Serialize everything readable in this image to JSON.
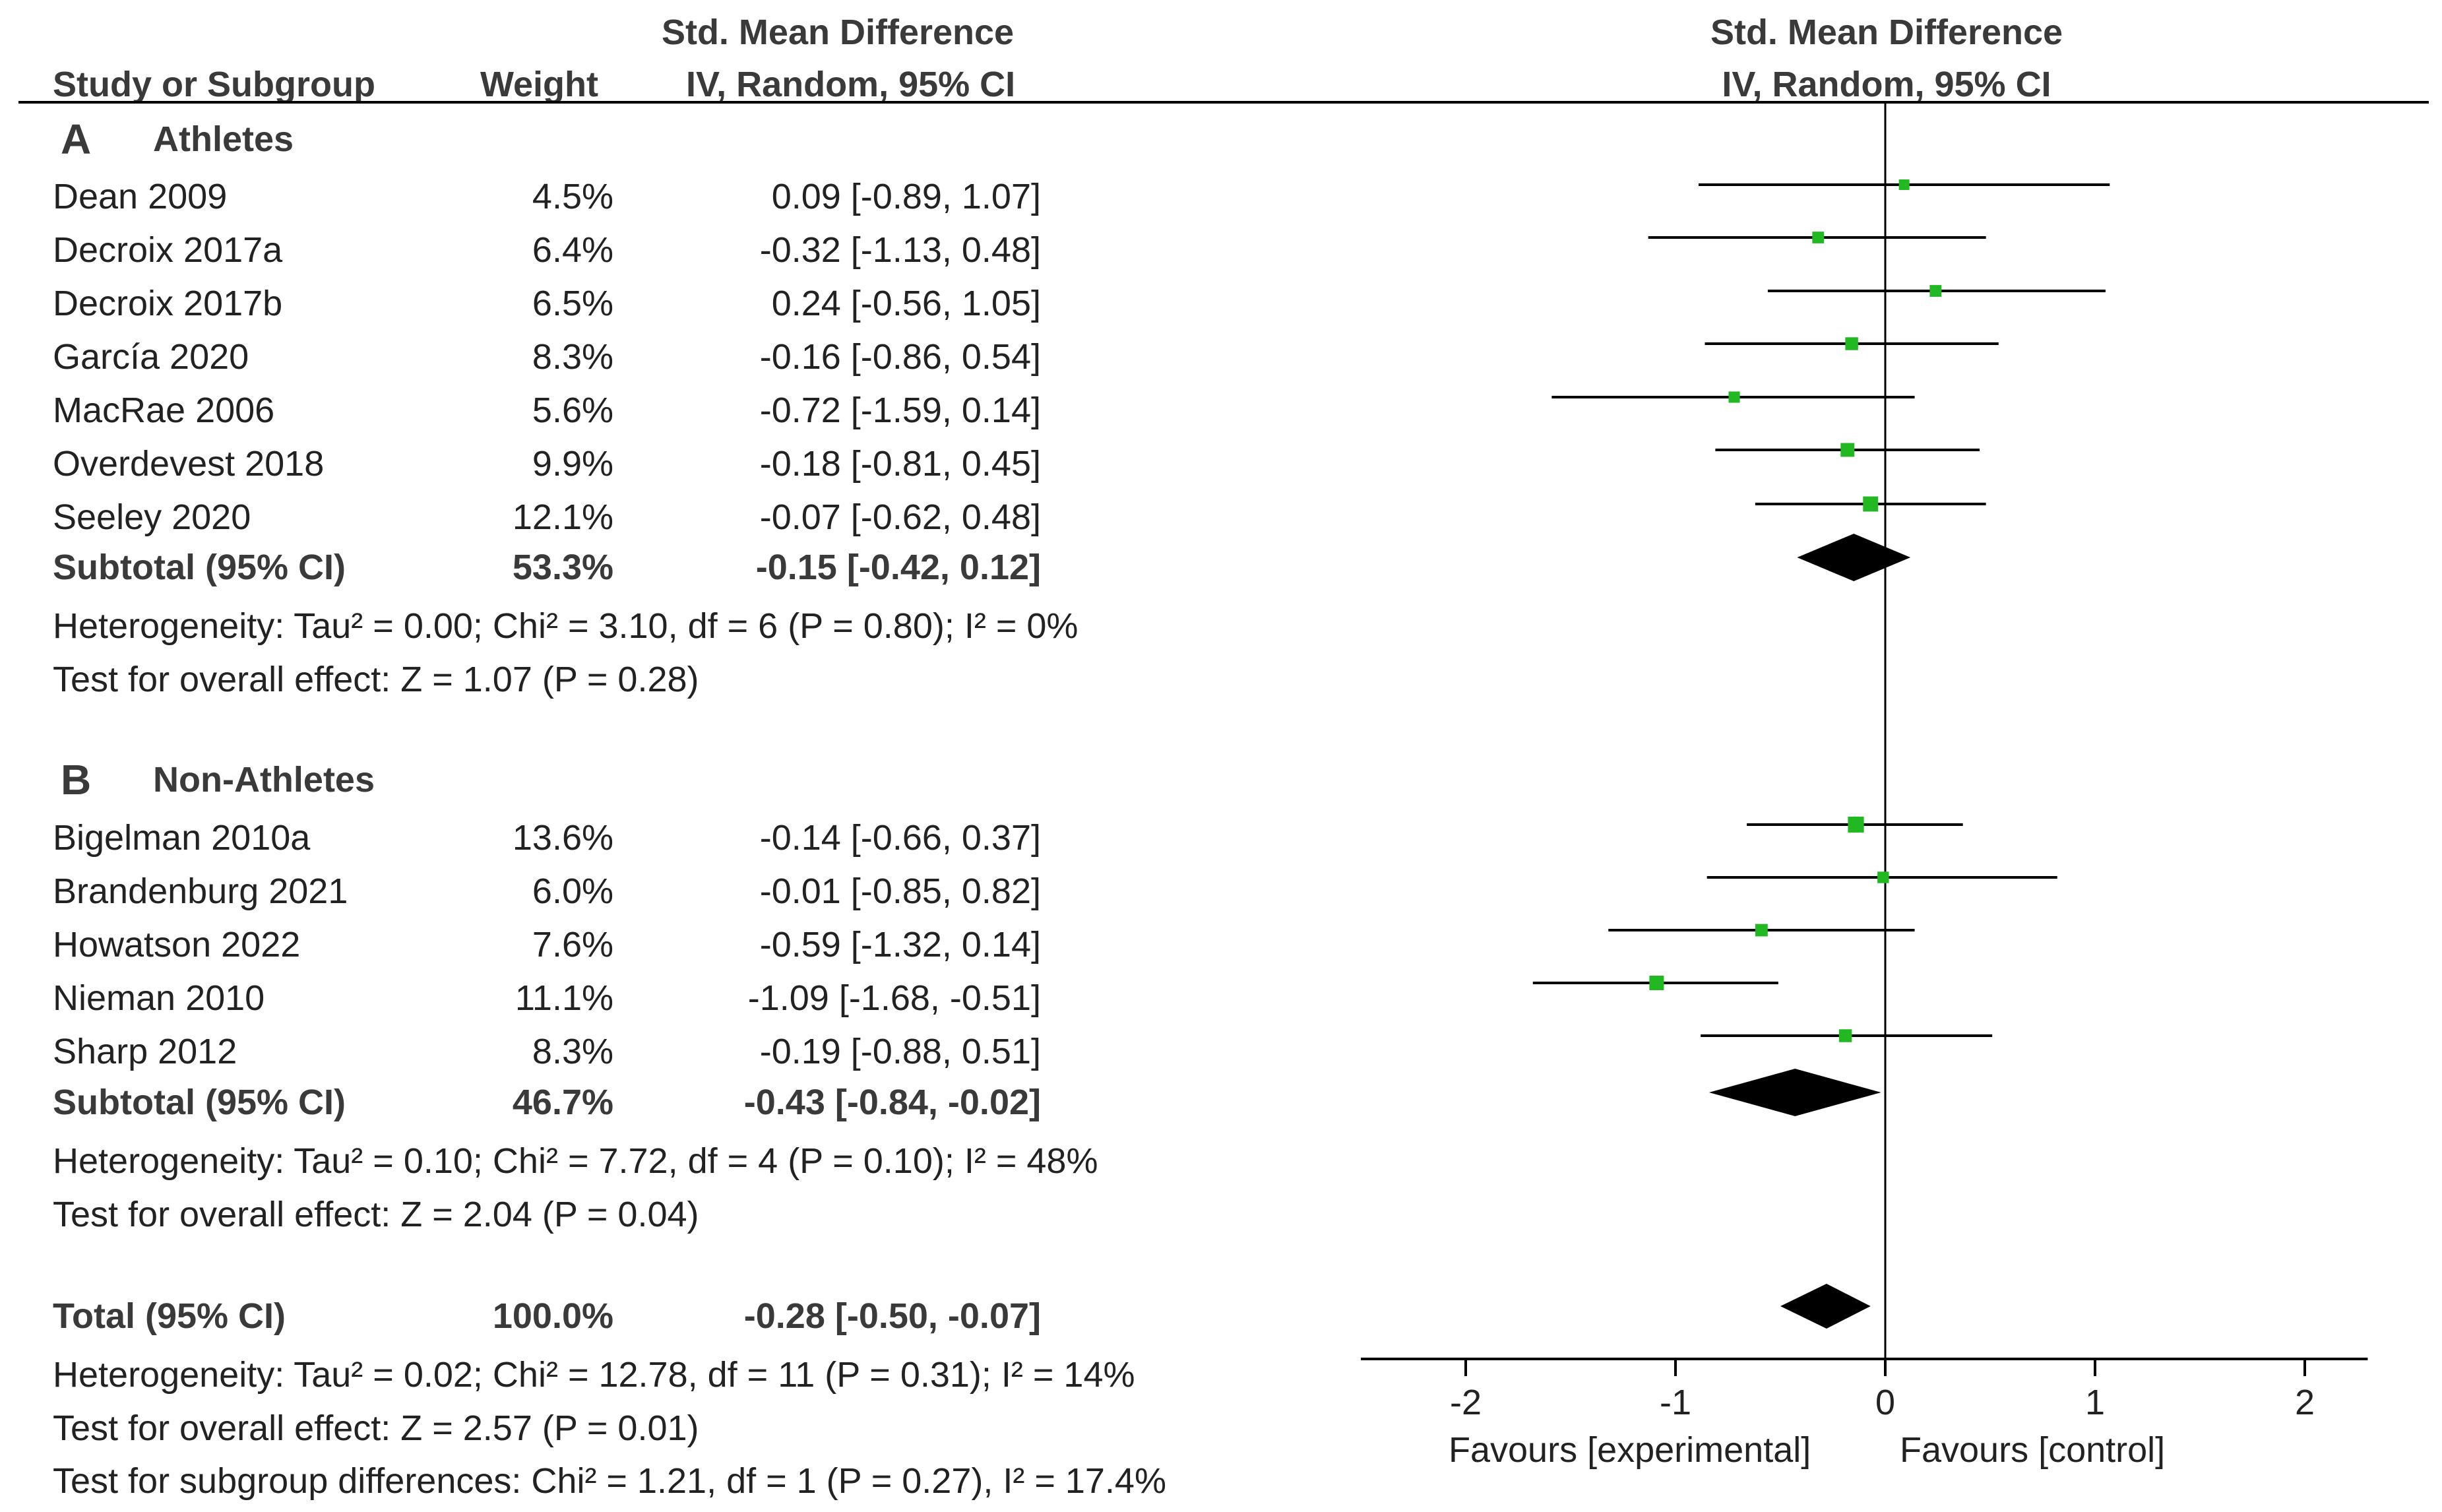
{
  "header": {
    "left_group": "Std. Mean Difference",
    "study_col": "Study or Subgroup",
    "weight_col": "Weight",
    "ci_col": "IV, Random, 95% CI",
    "plot_title": "Std. Mean Difference",
    "plot_subtitle": "IV, Random, 95% CI"
  },
  "chart_data": {
    "type": "forest",
    "xlim": [
      -2.5,
      2.3
    ],
    "ticks": [
      -2,
      -1,
      0,
      1,
      2
    ],
    "tick_labels": [
      "-2",
      "-1",
      "0",
      "1",
      "2"
    ],
    "favours_left": "Favours [experimental]",
    "favours_right": "Favours [control]",
    "colors": {
      "marker": "#22b822",
      "diamond": "#000000",
      "line": "#000000"
    },
    "groups": [
      {
        "letter": "A",
        "name": "Athletes",
        "studies": [
          {
            "name": "Dean 2009",
            "weight": "4.5%",
            "ci_text": "0.09 [-0.89, 1.07]",
            "est": 0.09,
            "lo": -0.89,
            "hi": 1.07,
            "w": 4.5
          },
          {
            "name": "Decroix 2017a",
            "weight": "6.4%",
            "ci_text": "-0.32 [-1.13, 0.48]",
            "est": -0.32,
            "lo": -1.13,
            "hi": 0.48,
            "w": 6.4
          },
          {
            "name": "Decroix 2017b",
            "weight": "6.5%",
            "ci_text": "0.24 [-0.56, 1.05]",
            "est": 0.24,
            "lo": -0.56,
            "hi": 1.05,
            "w": 6.5
          },
          {
            "name": "García 2020",
            "weight": "8.3%",
            "ci_text": "-0.16 [-0.86, 0.54]",
            "est": -0.16,
            "lo": -0.86,
            "hi": 0.54,
            "w": 8.3
          },
          {
            "name": "MacRae 2006",
            "weight": "5.6%",
            "ci_text": "-0.72 [-1.59, 0.14]",
            "est": -0.72,
            "lo": -1.59,
            "hi": 0.14,
            "w": 5.6
          },
          {
            "name": "Overdevest 2018",
            "weight": "9.9%",
            "ci_text": "-0.18 [-0.81, 0.45]",
            "est": -0.18,
            "lo": -0.81,
            "hi": 0.45,
            "w": 9.9
          },
          {
            "name": "Seeley 2020",
            "weight": "12.1%",
            "ci_text": "-0.07 [-0.62, 0.48]",
            "est": -0.07,
            "lo": -0.62,
            "hi": 0.48,
            "w": 12.1
          }
        ],
        "subtotal": {
          "label": "Subtotal (95% CI)",
          "weight": "53.3%",
          "ci_text": "-0.15 [-0.42, 0.12]",
          "est": -0.15,
          "lo": -0.42,
          "hi": 0.12
        },
        "heterogeneity": "Heterogeneity: Tau² = 0.00; Chi² = 3.10, df = 6 (P = 0.80); I² = 0%",
        "overall": "Test for overall effect: Z = 1.07 (P = 0.28)"
      },
      {
        "letter": "B",
        "name": "Non-Athletes",
        "studies": [
          {
            "name": "Bigelman 2010a",
            "weight": "13.6%",
            "ci_text": "-0.14 [-0.66, 0.37]",
            "est": -0.14,
            "lo": -0.66,
            "hi": 0.37,
            "w": 13.6
          },
          {
            "name": "Brandenburg 2021",
            "weight": "6.0%",
            "ci_text": "-0.01 [-0.85, 0.82]",
            "est": -0.01,
            "lo": -0.85,
            "hi": 0.82,
            "w": 6.0
          },
          {
            "name": "Howatson 2022",
            "weight": "7.6%",
            "ci_text": "-0.59 [-1.32, 0.14]",
            "est": -0.59,
            "lo": -1.32,
            "hi": 0.14,
            "w": 7.6
          },
          {
            "name": "Nieman 2010",
            "weight": "11.1%",
            "ci_text": "-1.09 [-1.68, -0.51]",
            "est": -1.09,
            "lo": -1.68,
            "hi": -0.51,
            "w": 11.1
          },
          {
            "name": "Sharp 2012",
            "weight": "8.3%",
            "ci_text": "-0.19 [-0.88, 0.51]",
            "est": -0.19,
            "lo": -0.88,
            "hi": 0.51,
            "w": 8.3
          }
        ],
        "subtotal": {
          "label": "Subtotal (95% CI)",
          "weight": "46.7%",
          "ci_text": "-0.43 [-0.84, -0.02]",
          "est": -0.43,
          "lo": -0.84,
          "hi": -0.02
        },
        "heterogeneity": "Heterogeneity: Tau² = 0.10; Chi² = 7.72, df = 4 (P = 0.10); I² = 48%",
        "overall": "Test for overall effect: Z = 2.04 (P = 0.04)"
      }
    ],
    "total": {
      "label": "Total (95% CI)",
      "weight": "100.0%",
      "ci_text": "-0.28 [-0.50, -0.07]",
      "est": -0.28,
      "lo": -0.5,
      "hi": -0.07,
      "heterogeneity": "Heterogeneity: Tau² = 0.02; Chi² = 12.78, df = 11 (P = 0.31); I² = 14%",
      "overall": "Test for overall effect: Z = 2.57 (P = 0.01)",
      "subgroup": "Test for subgroup differences: Chi² = 1.21, df = 1 (P = 0.27), I² = 17.4%"
    }
  }
}
